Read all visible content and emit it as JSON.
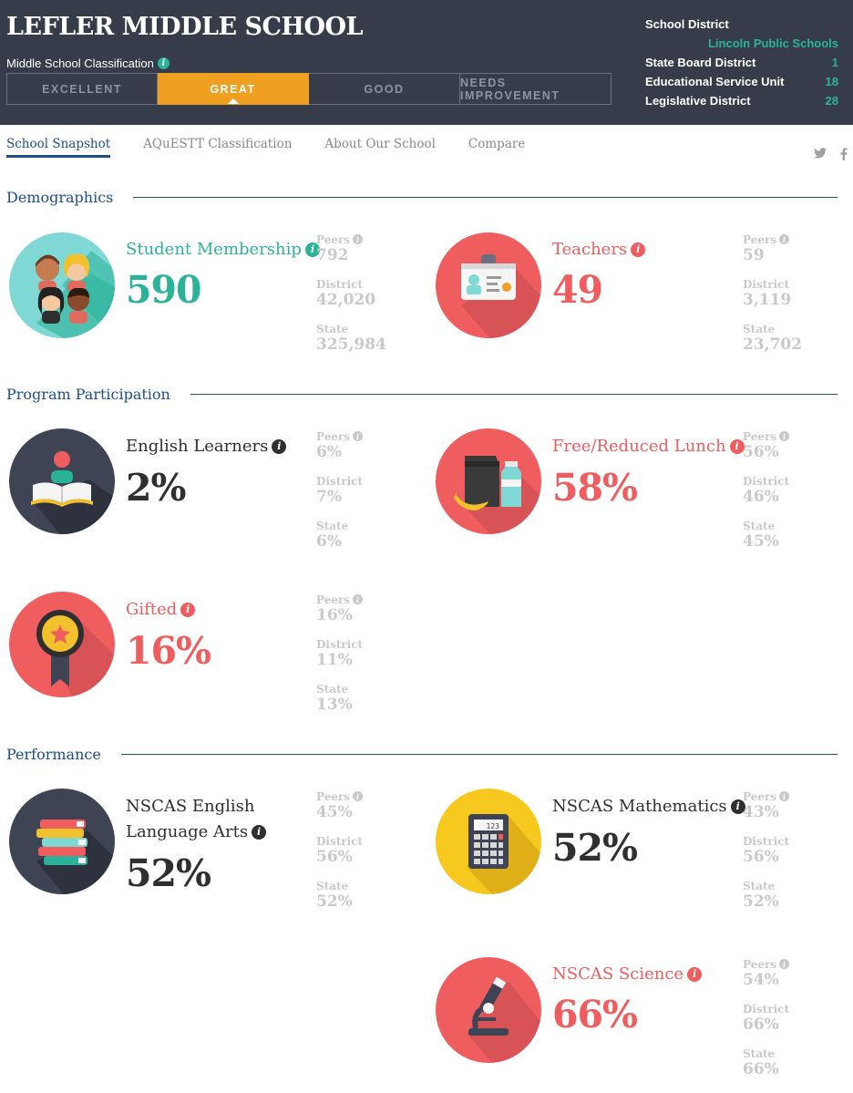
{
  "header": {
    "school_name": "LEFLER MIDDLE SCHOOL",
    "classification_label": "Middle School Classification",
    "ratings": [
      "EXCELLENT",
      "GREAT",
      "GOOD",
      "NEEDS IMPROVEMENT"
    ],
    "active_rating": "GREAT",
    "district_info": {
      "school_district_label": "School District",
      "school_district_value": "Lincoln Public Schools",
      "state_board_label": "State Board District",
      "state_board_value": "1",
      "esu_label": "Educational Service Unit",
      "esu_value": "18",
      "legislative_label": "Legislative District",
      "legislative_value": "28"
    }
  },
  "tabs": [
    "School Snapshot",
    "AQuESTT Classification",
    "About Our School",
    "Compare"
  ],
  "social": {
    "twitter": "twitter-icon",
    "facebook": "facebook-icon"
  },
  "sections": {
    "demographics": "Demographics",
    "program": "Program Participation",
    "performance": "Performance"
  },
  "compare_labels": {
    "peers": "Peers",
    "district": "District",
    "state": "State"
  },
  "stats": {
    "student_membership": {
      "title": "Student Membership",
      "value": "590",
      "peers": "792",
      "district": "42,020",
      "state": "325,984",
      "color": "#2bb39a",
      "icon": "students-icon"
    },
    "teachers": {
      "title": "Teachers",
      "value": "49",
      "peers": "59",
      "district": "3,119",
      "state": "23,702",
      "color": "#ef5d5f",
      "icon": "id-badge-icon"
    },
    "english_learners": {
      "title": "English Learners",
      "value": "2%",
      "peers": "6%",
      "district": "7%",
      "state": "6%",
      "color": "#2f2f2f",
      "icon": "reader-book-icon"
    },
    "free_reduced_lunch": {
      "title": "Free/Reduced Lunch",
      "value": "58%",
      "peers": "56%",
      "district": "46%",
      "state": "45%",
      "color": "#ef5d5f",
      "icon": "lunch-icon"
    },
    "gifted": {
      "title": "Gifted",
      "value": "16%",
      "peers": "16%",
      "district": "11%",
      "state": "13%",
      "color": "#ef5d5f",
      "icon": "award-ribbon-icon"
    },
    "nscas_ela": {
      "title_line1": "NSCAS English",
      "title_line2": "Language Arts",
      "value": "52%",
      "peers": "45%",
      "district": "56%",
      "state": "52%",
      "color": "#2f2f2f",
      "icon": "books-icon"
    },
    "nscas_math": {
      "title": "NSCAS Mathematics",
      "value": "52%",
      "peers": "43%",
      "district": "56%",
      "state": "52%",
      "color": "#2f2f2f",
      "icon": "calculator-icon"
    },
    "nscas_science": {
      "title": "NSCAS Science",
      "value": "66%",
      "peers": "54%",
      "district": "66%",
      "state": "66%",
      "color": "#ef5d5f",
      "icon": "microscope-icon"
    }
  },
  "calculator_display": "123",
  "info_glyph": "i"
}
